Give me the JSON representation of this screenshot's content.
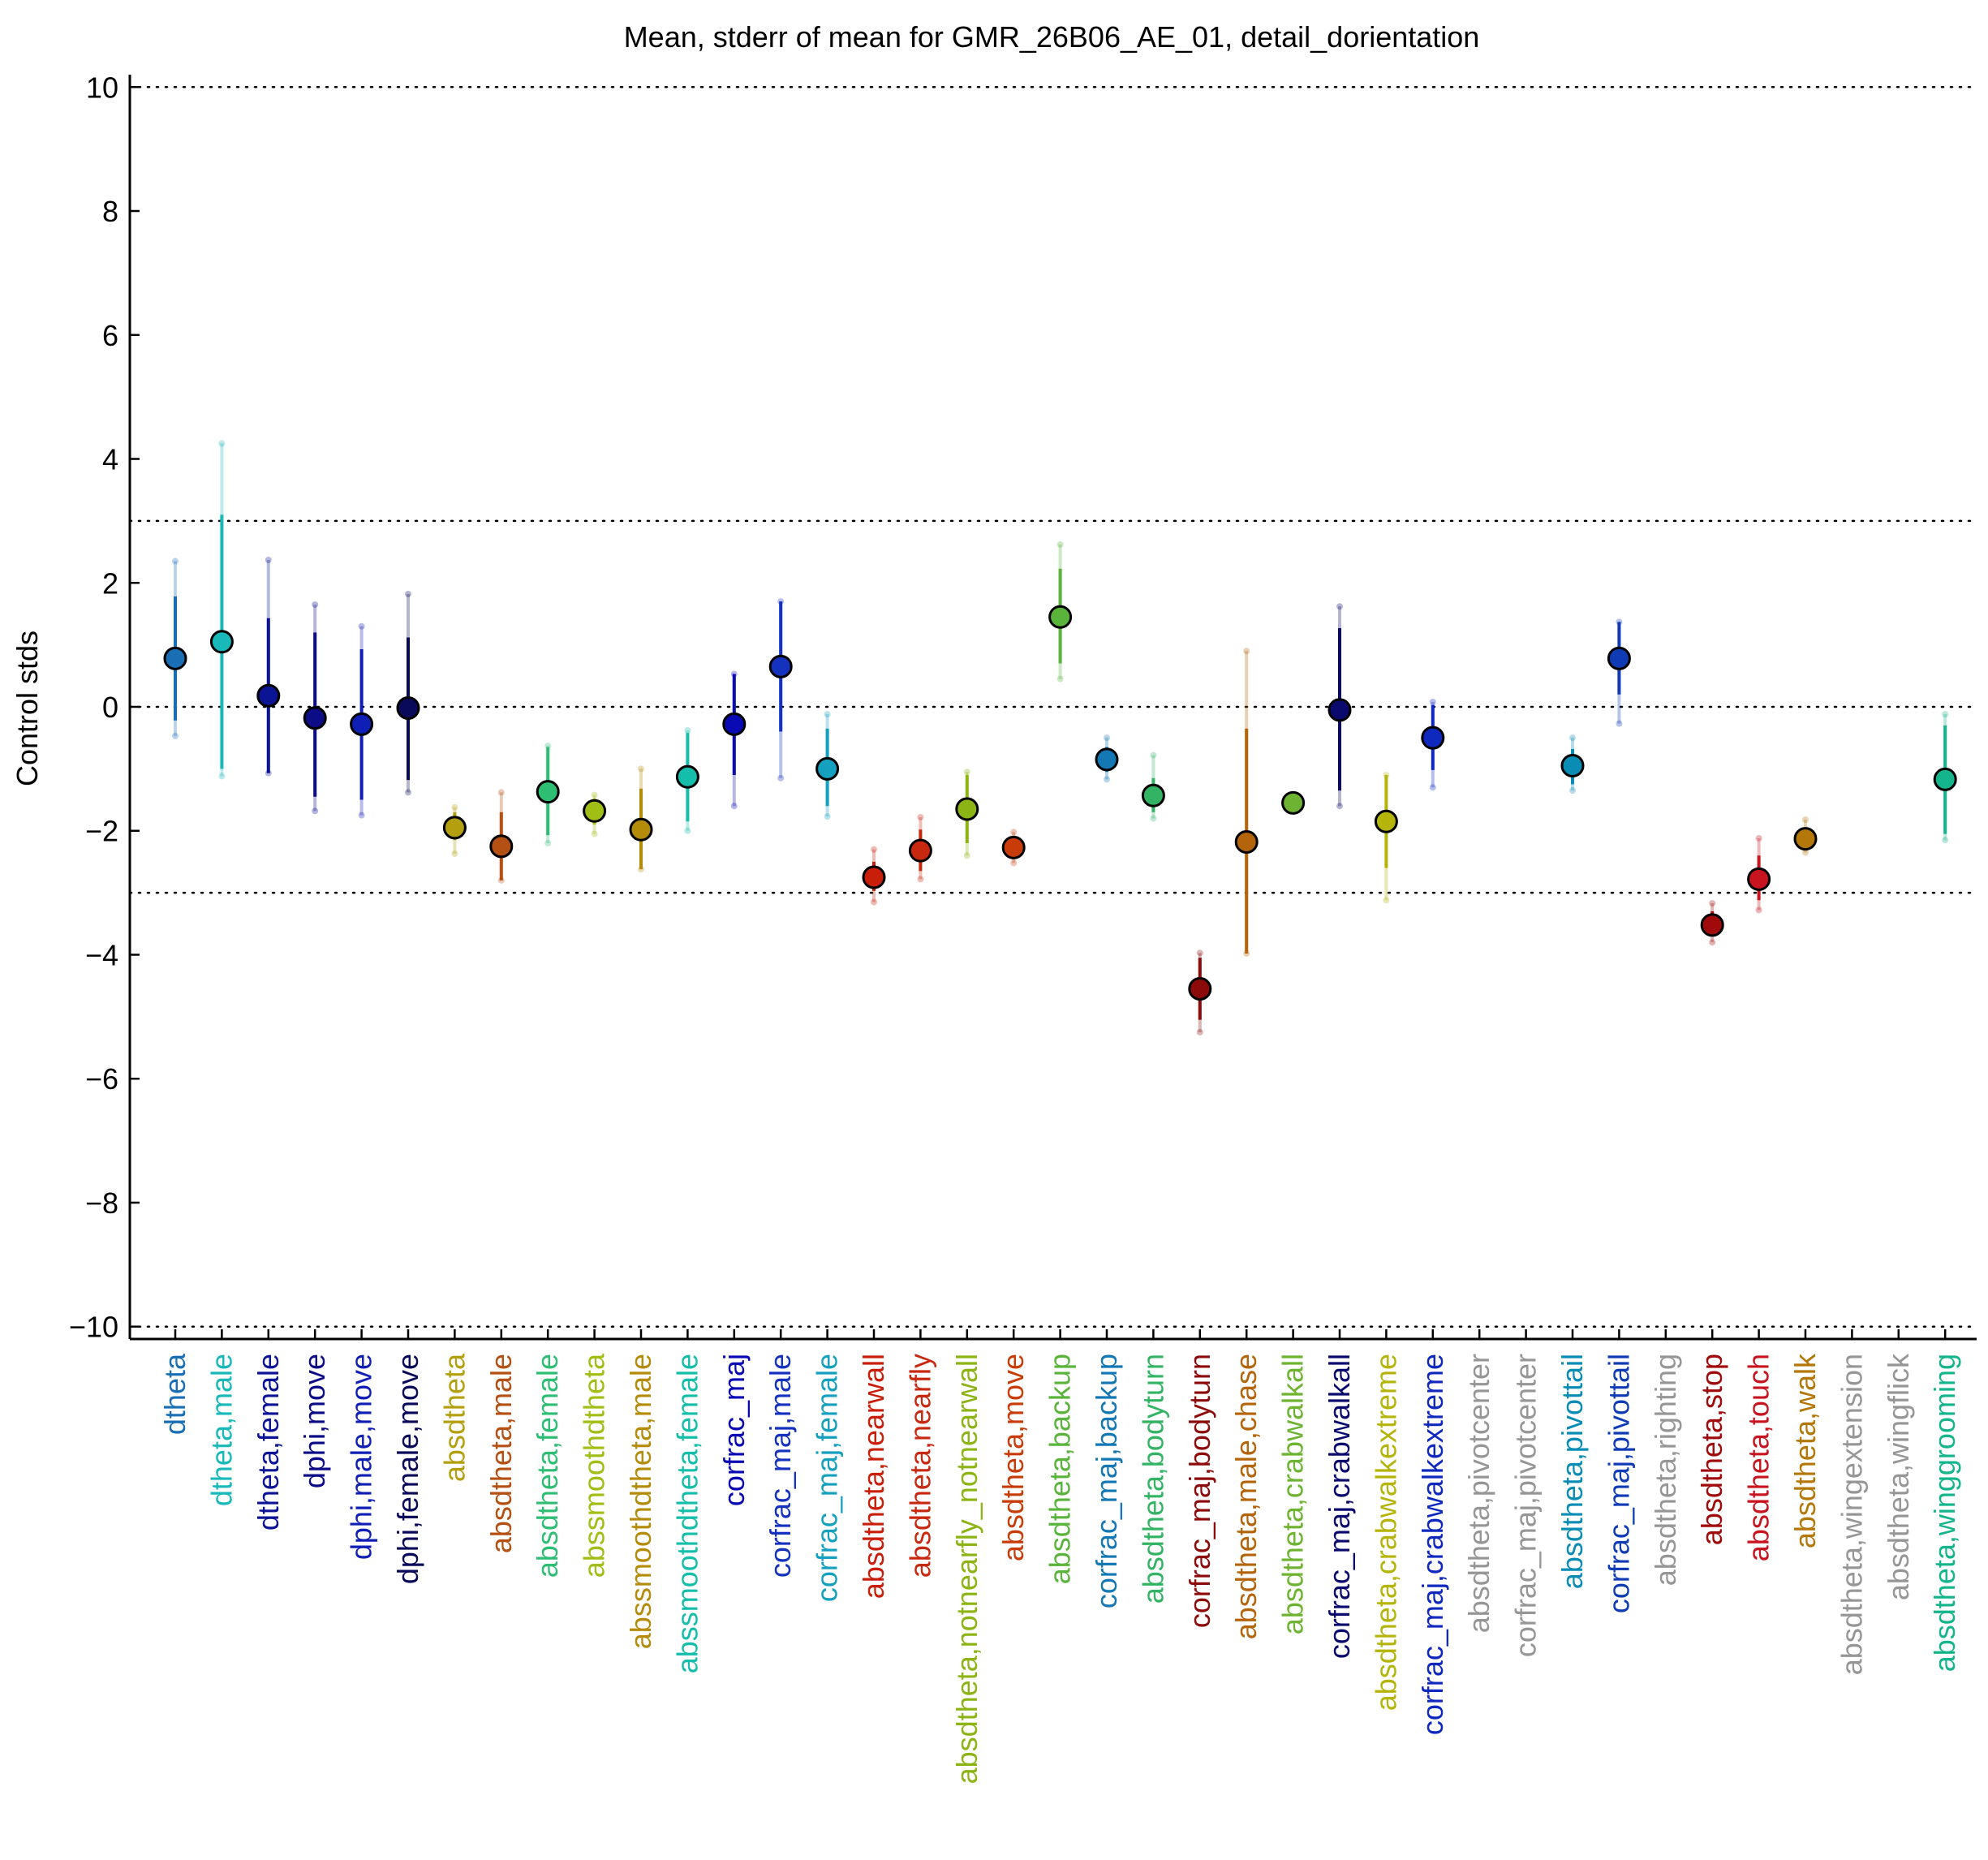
{
  "chart_data": {
    "type": "scatter",
    "title": "Mean, stderr of mean for GMR_26B06_AE_01, detail_dorientation",
    "xlabel": "",
    "ylabel": "Control stds",
    "ylim": [
      -10.2,
      10.2
    ],
    "yticks": [
      {
        "value": 10,
        "label": "10"
      },
      {
        "value": 8,
        "label": "8"
      },
      {
        "value": 6,
        "label": "6"
      },
      {
        "value": 4,
        "label": "4"
      },
      {
        "value": 2,
        "label": "2"
      },
      {
        "value": 0,
        "label": "0"
      },
      {
        "value": -2,
        "label": "−2"
      },
      {
        "value": -4,
        "label": "−4"
      },
      {
        "value": -6,
        "label": "−6"
      },
      {
        "value": -8,
        "label": "−8"
      },
      {
        "value": -10,
        "label": "−10"
      }
    ],
    "reference_lines": [
      10,
      3,
      0,
      -3,
      -10
    ],
    "grid": false,
    "categories": [
      {
        "label": "dtheta",
        "color": "#1a6eb4",
        "mean": 0.78,
        "se_low": -0.22,
        "se_high": 1.78,
        "ext_low": -0.47,
        "ext_high": 2.35
      },
      {
        "label": "dtheta,male",
        "color": "#19b9b9",
        "mean": 1.05,
        "se_low": -1.0,
        "se_high": 3.1,
        "ext_low": -1.12,
        "ext_high": 4.25
      },
      {
        "label": "dtheta,female",
        "color": "#0c1496",
        "mean": 0.18,
        "se_low": -1.07,
        "se_high": 1.43,
        "ext_low": -1.07,
        "ext_high": 2.37
      },
      {
        "label": "dphi,move",
        "color": "#0c0c87",
        "mean": -0.18,
        "se_low": -1.45,
        "se_high": 1.2,
        "ext_low": -1.68,
        "ext_high": 1.65
      },
      {
        "label": "dphi,male,move",
        "color": "#0f1eb4",
        "mean": -0.28,
        "se_low": -1.5,
        "se_high": 0.93,
        "ext_low": -1.75,
        "ext_high": 1.3
      },
      {
        "label": "dphi,female,move",
        "color": "#0a0a5a",
        "mean": -0.02,
        "se_low": -1.18,
        "se_high": 1.12,
        "ext_low": -1.38,
        "ext_high": 1.82
      },
      {
        "label": "absdtheta",
        "color": "#b4a00f",
        "mean": -1.95,
        "se_low": -2.15,
        "se_high": -1.7,
        "ext_low": -2.37,
        "ext_high": -1.62
      },
      {
        "label": "absdtheta,male",
        "color": "#b45014",
        "mean": -2.25,
        "se_low": -2.8,
        "se_high": -1.7,
        "ext_low": -2.8,
        "ext_high": -1.38
      },
      {
        "label": "absdtheta,female",
        "color": "#2dbe73",
        "mean": -1.37,
        "se_low": -2.07,
        "se_high": -0.65,
        "ext_low": -2.2,
        "ext_high": -0.63
      },
      {
        "label": "abssmoothdtheta",
        "color": "#a0be14",
        "mean": -1.68,
        "se_low": -1.9,
        "se_high": -1.48,
        "ext_low": -2.05,
        "ext_high": -1.42
      },
      {
        "label": "abssmoothdtheta,male",
        "color": "#b48c0a",
        "mean": -1.98,
        "se_low": -2.62,
        "se_high": -1.32,
        "ext_low": -2.62,
        "ext_high": -1.0
      },
      {
        "label": "abssmoothdtheta,female",
        "color": "#14beaa",
        "mean": -1.13,
        "se_low": -1.85,
        "se_high": -0.42,
        "ext_low": -2.0,
        "ext_high": -0.38
      },
      {
        "label": "corfrac_maj",
        "color": "#0a0ab4",
        "mean": -0.28,
        "se_low": -1.1,
        "se_high": 0.53,
        "ext_low": -1.6,
        "ext_high": 0.53
      },
      {
        "label": "corfrac_maj,male",
        "color": "#1432be",
        "mean": 0.65,
        "se_low": -0.4,
        "se_high": 1.7,
        "ext_low": -1.15,
        "ext_high": 1.7
      },
      {
        "label": "corfrac_maj,female",
        "color": "#14a0be",
        "mean": -1.0,
        "se_low": -1.6,
        "se_high": -0.35,
        "ext_low": -1.77,
        "ext_high": -0.12
      },
      {
        "label": "absdtheta,nearwall",
        "color": "#c81e0a",
        "mean": -2.75,
        "se_low": -2.97,
        "se_high": -2.5,
        "ext_low": -3.15,
        "ext_high": -2.3
      },
      {
        "label": "absdtheta,nearfly",
        "color": "#c8280f",
        "mean": -2.32,
        "se_low": -2.65,
        "se_high": -1.98,
        "ext_low": -2.78,
        "ext_high": -1.78
      },
      {
        "label": "absdtheta,notnearfly_notnearwall",
        "color": "#8cb414",
        "mean": -1.65,
        "se_low": -2.2,
        "se_high": -1.1,
        "ext_low": -2.4,
        "ext_high": -1.05
      },
      {
        "label": "absdtheta,move",
        "color": "#c83c0a",
        "mean": -2.27,
        "se_low": -2.42,
        "se_high": -2.1,
        "ext_low": -2.52,
        "ext_high": -2.02
      },
      {
        "label": "absdtheta,backup",
        "color": "#5ab43c",
        "mean": 1.45,
        "se_low": 0.7,
        "se_high": 2.23,
        "ext_low": 0.45,
        "ext_high": 2.62
      },
      {
        "label": "corfrac_maj,backup",
        "color": "#1478b4",
        "mean": -0.85,
        "se_low": -1.05,
        "se_high": -0.65,
        "ext_low": -1.17,
        "ext_high": -0.5
      },
      {
        "label": "absdtheta,bodyturn",
        "color": "#32b464",
        "mean": -1.43,
        "se_low": -1.7,
        "se_high": -1.15,
        "ext_low": -1.8,
        "ext_high": -0.78
      },
      {
        "label": "corfrac_maj,bodyturn",
        "color": "#8c0a0a",
        "mean": -4.55,
        "se_low": -5.05,
        "se_high": -4.05,
        "ext_low": -5.25,
        "ext_high": -3.97
      },
      {
        "label": "absdtheta,male,chase",
        "color": "#b4640a",
        "mean": -2.18,
        "se_low": -3.98,
        "se_high": -0.35,
        "ext_low": -3.98,
        "ext_high": 0.9
      },
      {
        "label": "absdtheta,crabwalkall",
        "color": "#6eb432",
        "mean": -1.55,
        "se_low": -1.55,
        "se_high": -1.55,
        "ext_low": -1.55,
        "ext_high": -1.55
      },
      {
        "label": "corfrac_maj,crabwalkall",
        "color": "#0a0a6e",
        "mean": -0.05,
        "se_low": -1.35,
        "se_high": 1.27,
        "ext_low": -1.6,
        "ext_high": 1.62
      },
      {
        "label": "absdtheta,crabwalkextreme",
        "color": "#b4b40a",
        "mean": -1.85,
        "se_low": -2.6,
        "se_high": -1.1,
        "ext_low": -3.12,
        "ext_high": -1.1
      },
      {
        "label": "corfrac_maj,crabwalkextreme",
        "color": "#0f28be",
        "mean": -0.5,
        "se_low": -1.02,
        "se_high": 0.03,
        "ext_low": -1.3,
        "ext_high": 0.08
      },
      {
        "label": "absdtheta,pivotcenter",
        "color": "#969696",
        "mean": null
      },
      {
        "label": "corfrac_maj,pivotcenter",
        "color": "#969696",
        "mean": null
      },
      {
        "label": "absdtheta,pivottail",
        "color": "#0a8cb4",
        "mean": -0.95,
        "se_low": -1.25,
        "se_high": -0.68,
        "ext_low": -1.35,
        "ext_high": -0.5
      },
      {
        "label": "corfrac_maj,pivottail",
        "color": "#0f3cb4",
        "mean": 0.78,
        "se_low": 0.2,
        "se_high": 1.37,
        "ext_low": -0.27,
        "ext_high": 1.37
      },
      {
        "label": "absdtheta,righting",
        "color": "#969696",
        "mean": null
      },
      {
        "label": "absdtheta,stop",
        "color": "#a00a0a",
        "mean": -3.52,
        "se_low": -3.7,
        "se_high": -3.3,
        "ext_low": -3.8,
        "ext_high": -3.17
      },
      {
        "label": "absdtheta,touch",
        "color": "#c8141e",
        "mean": -2.78,
        "se_low": -3.12,
        "se_high": -2.4,
        "ext_low": -3.28,
        "ext_high": -2.12
      },
      {
        "label": "absdtheta,walk",
        "color": "#b4780a",
        "mean": -2.13,
        "se_low": -2.28,
        "se_high": -1.98,
        "ext_low": -2.35,
        "ext_high": -1.82
      },
      {
        "label": "absdtheta,wingextension",
        "color": "#969696",
        "mean": null
      },
      {
        "label": "absdtheta,wingflick",
        "color": "#969696",
        "mean": null
      },
      {
        "label": "absdtheta,winggrooming",
        "color": "#14b48c",
        "mean": -1.17,
        "se_low": -2.05,
        "se_high": -0.3,
        "ext_low": -2.15,
        "ext_high": -0.12
      }
    ]
  }
}
